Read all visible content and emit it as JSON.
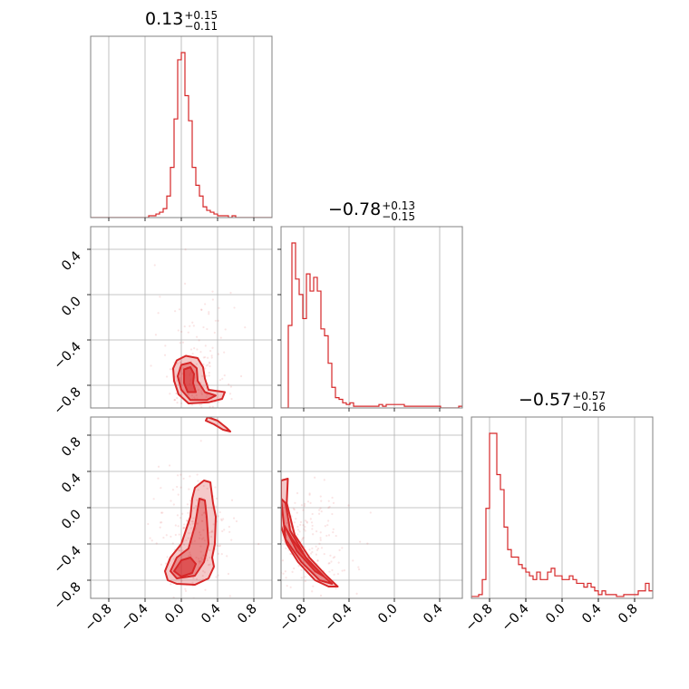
{
  "chart_data": {
    "type": "corner",
    "color": "#d62728",
    "grid": true,
    "params": [
      {
        "title_value": "0.13",
        "title_plus": "+0.15",
        "title_minus": "−0.11"
      },
      {
        "title_value": "−0.78",
        "title_plus": "+0.13",
        "title_minus": "−0.15"
      },
      {
        "title_value": "−0.57",
        "title_plus": "+0.57",
        "title_minus": "−0.16"
      }
    ],
    "ranges": [
      [
        -1.0,
        1.0
      ],
      [
        -1.0,
        0.6
      ],
      [
        -1.0,
        1.0
      ]
    ],
    "ticks": [
      {
        "values": [
          -0.8,
          -0.4,
          0.0,
          0.4,
          0.8
        ],
        "labels": [
          "−0.8",
          "−0.4",
          "0.0",
          "0.4",
          "0.8"
        ]
      },
      {
        "values": [
          -0.8,
          -0.4,
          0.0,
          0.4
        ],
        "labels": [
          "−0.8",
          "−0.4",
          "0.0",
          "0.4"
        ]
      },
      {
        "values": [
          -0.8,
          -0.4,
          0.0,
          0.4,
          0.8
        ],
        "labels": [
          "−0.8",
          "−0.4",
          "0.0",
          "0.4",
          "0.8"
        ]
      }
    ],
    "histograms": [
      {
        "bin_start": -1.0,
        "bin_width": 0.04,
        "counts": [
          0,
          0,
          0,
          0,
          0,
          0,
          0,
          0,
          0,
          0,
          0,
          0,
          0,
          0,
          0,
          0,
          1,
          1,
          2,
          3,
          5,
          12,
          28,
          55,
          88,
          92,
          68,
          54,
          28,
          18,
          12,
          6,
          4,
          3,
          2,
          1,
          1,
          1,
          0,
          1,
          0,
          0,
          0,
          0,
          0,
          0,
          0,
          0,
          0,
          0
        ]
      },
      {
        "bin_start": -1.0,
        "bin_width": 0.032,
        "counts": [
          0,
          0,
          48,
          96,
          75,
          66,
          52,
          78,
          68,
          76,
          68,
          46,
          42,
          26,
          12,
          6,
          5,
          3,
          2,
          3,
          1,
          1,
          1,
          1,
          1,
          1,
          1,
          2,
          1,
          2,
          2,
          2,
          2,
          2,
          1,
          1,
          1,
          1,
          1,
          1,
          1,
          1,
          1,
          1,
          0,
          0,
          0,
          0,
          0,
          1
        ]
      },
      {
        "bin_start": -1.0,
        "bin_width": 0.04,
        "counts": [
          1,
          1,
          2,
          10,
          48,
          88,
          88,
          66,
          58,
          38,
          26,
          22,
          22,
          18,
          16,
          14,
          12,
          10,
          14,
          10,
          10,
          14,
          16,
          12,
          12,
          10,
          10,
          12,
          10,
          8,
          8,
          6,
          8,
          6,
          4,
          2,
          4,
          2,
          2,
          2,
          1,
          1,
          2,
          2,
          2,
          2,
          4,
          4,
          8,
          4
        ]
      }
    ],
    "contours": [
      {
        "x_param": 0,
        "y_param": 1,
        "levels": [
          [
            [
              -0.05,
              -0.58
            ],
            [
              0.05,
              -0.54
            ],
            [
              0.18,
              -0.56
            ],
            [
              0.24,
              -0.64
            ],
            [
              0.26,
              -0.74
            ],
            [
              0.3,
              -0.84
            ],
            [
              0.48,
              -0.86
            ],
            [
              0.45,
              -0.92
            ],
            [
              0.3,
              -0.95
            ],
            [
              0.08,
              -0.96
            ],
            [
              -0.03,
              -0.88
            ],
            [
              -0.08,
              -0.76
            ],
            [
              -0.09,
              -0.65
            ]
          ],
          [
            [
              0.0,
              -0.62
            ],
            [
              0.1,
              -0.6
            ],
            [
              0.17,
              -0.65
            ],
            [
              0.18,
              -0.76
            ],
            [
              0.26,
              -0.86
            ],
            [
              0.38,
              -0.89
            ],
            [
              0.28,
              -0.93
            ],
            [
              0.1,
              -0.93
            ],
            [
              0.0,
              -0.84
            ],
            [
              -0.04,
              -0.72
            ]
          ],
          [
            [
              0.03,
              -0.66
            ],
            [
              0.1,
              -0.64
            ],
            [
              0.14,
              -0.7
            ],
            [
              0.13,
              -0.78
            ],
            [
              0.16,
              -0.86
            ],
            [
              0.07,
              -0.86
            ],
            [
              0.03,
              -0.78
            ]
          ]
        ]
      },
      {
        "x_param": 0,
        "y_param": 2,
        "levels": [
          [
            [
              0.25,
              0.3
            ],
            [
              0.32,
              0.28
            ],
            [
              0.35,
              0.05
            ],
            [
              0.38,
              -0.1
            ],
            [
              0.37,
              -0.4
            ],
            [
              0.34,
              -0.55
            ],
            [
              0.36,
              -0.65
            ],
            [
              0.3,
              -0.78
            ],
            [
              0.15,
              -0.85
            ],
            [
              -0.05,
              -0.84
            ],
            [
              -0.15,
              -0.8
            ],
            [
              -0.18,
              -0.7
            ],
            [
              -0.12,
              -0.55
            ],
            [
              0.0,
              -0.4
            ],
            [
              0.1,
              -0.1
            ],
            [
              0.12,
              0.1
            ],
            [
              0.15,
              0.22
            ]
          ],
          [
            [
              0.2,
              0.1
            ],
            [
              0.26,
              0.08
            ],
            [
              0.28,
              -0.1
            ],
            [
              0.3,
              -0.4
            ],
            [
              0.25,
              -0.6
            ],
            [
              0.15,
              -0.75
            ],
            [
              -0.05,
              -0.78
            ],
            [
              -0.12,
              -0.7
            ],
            [
              -0.05,
              -0.55
            ],
            [
              0.08,
              -0.45
            ],
            [
              0.15,
              -0.2
            ]
          ],
          [
            [
              0.0,
              -0.58
            ],
            [
              0.1,
              -0.55
            ],
            [
              0.16,
              -0.62
            ],
            [
              0.12,
              -0.72
            ],
            [
              0.0,
              -0.76
            ],
            [
              -0.08,
              -0.7
            ]
          ],
          [
            [
              0.29,
              1.0
            ],
            [
              0.4,
              0.96
            ],
            [
              0.5,
              0.88
            ],
            [
              0.54,
              0.84
            ],
            [
              0.46,
              0.86
            ],
            [
              0.36,
              0.92
            ],
            [
              0.27,
              0.96
            ]
          ]
        ]
      },
      {
        "x_param": 1,
        "y_param": 2,
        "levels": [
          [
            [
              -1.0,
              0.3
            ],
            [
              -0.94,
              0.32
            ],
            [
              -0.95,
              0.05
            ],
            [
              -0.88,
              -0.3
            ],
            [
              -0.75,
              -0.55
            ],
            [
              -0.6,
              -0.75
            ],
            [
              -0.5,
              -0.87
            ],
            [
              -0.58,
              -0.87
            ],
            [
              -0.7,
              -0.8
            ],
            [
              -0.85,
              -0.6
            ],
            [
              -0.95,
              -0.4
            ],
            [
              -1.0,
              -0.2
            ]
          ],
          [
            [
              -1.0,
              0.1
            ],
            [
              -0.96,
              0.05
            ],
            [
              -0.92,
              -0.25
            ],
            [
              -0.78,
              -0.55
            ],
            [
              -0.62,
              -0.76
            ],
            [
              -0.55,
              -0.84
            ],
            [
              -0.66,
              -0.8
            ],
            [
              -0.82,
              -0.6
            ],
            [
              -0.96,
              -0.35
            ]
          ],
          [
            [
              -0.97,
              -0.2
            ],
            [
              -0.9,
              -0.35
            ],
            [
              -0.75,
              -0.6
            ],
            [
              -0.62,
              -0.76
            ],
            [
              -0.7,
              -0.7
            ],
            [
              -0.86,
              -0.48
            ]
          ]
        ]
      }
    ]
  }
}
